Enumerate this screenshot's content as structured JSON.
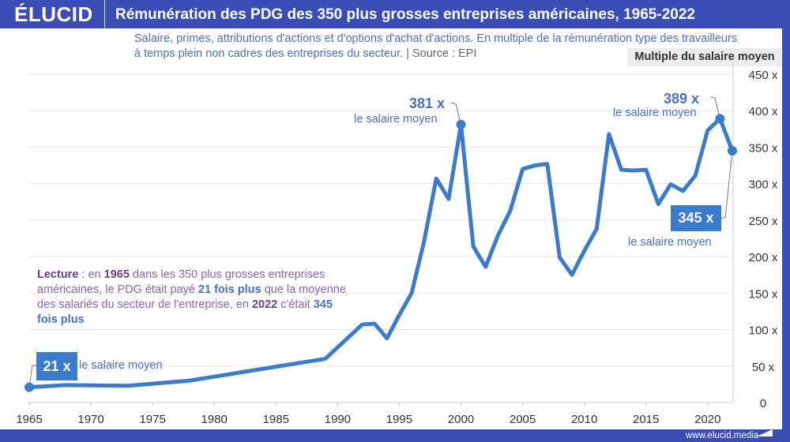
{
  "header": {
    "logo": "ÉLUCID",
    "title": "Rémunération des PDG des 350 plus grosses entreprises américaines, 1965-2022"
  },
  "subtitle": {
    "line1": "Salaire, primes, attributions d'actions et d'options d'achat d'actions. En multiple de la rémunération type des travailleurs",
    "line2": "à temps plein non cadres des entreprises du secteur.",
    "source": "|  Source : EPI"
  },
  "unit_label": "Multiple du salaire moyen",
  "lecture": {
    "t1": "Lecture",
    "t2": " : en ",
    "t3": "1965",
    "t4": " dans les 350 plus grosses entreprises américaines, le PDG était payé ",
    "t5": "21 fois plus",
    "t6": " que la moyenne des salariés du secteur de l'entreprise, en ",
    "t7": "2022",
    "t8": " c'était ",
    "t9": "345 fois plus"
  },
  "annotations": {
    "a1965": {
      "value": "21 x",
      "text": "le salaire moyen"
    },
    "a2000": {
      "value": "381 x",
      "text": "le salaire moyen"
    },
    "a2021": {
      "value": "389 x",
      "text": "le salaire moyen"
    },
    "a2022": {
      "value": "345 x",
      "text": "le salaire moyen"
    }
  },
  "footer": "www.elucid.media",
  "colors": {
    "line": "#3a7ccb",
    "frame": "#3b4db5",
    "grid": "#e6e6e6"
  },
  "chart_data": {
    "type": "line",
    "title": "Rémunération des PDG des 350 plus grosses entreprises américaines, 1965-2022",
    "ylabel": "Multiple du salaire moyen",
    "xlim": [
      1965,
      2022
    ],
    "ylim": [
      0,
      450
    ],
    "xticks": [
      1965,
      1970,
      1975,
      1980,
      1985,
      1990,
      1995,
      2000,
      2005,
      2010,
      2015,
      2020
    ],
    "yticks": [
      0,
      50,
      100,
      150,
      200,
      250,
      300,
      350,
      400,
      450
    ],
    "ytick_labels": [
      "0",
      "50 x",
      "100 x",
      "150 x",
      "200 x",
      "250 x",
      "300 x",
      "350 x",
      "400 x",
      "450 x"
    ],
    "grid": true,
    "y_axis_side": "right",
    "x": [
      1965,
      1968,
      1973,
      1978,
      1989,
      1992,
      1993,
      1994,
      1995,
      1996,
      1997,
      1998,
      1999,
      2000,
      2001,
      2002,
      2003,
      2004,
      2005,
      2006,
      2007,
      2008,
      2009,
      2010,
      2011,
      2012,
      2013,
      2014,
      2015,
      2016,
      2017,
      2018,
      2019,
      2020,
      2021,
      2022
    ],
    "values": [
      21,
      24,
      23,
      30,
      60,
      107,
      108,
      88,
      120,
      150,
      220,
      307,
      279,
      381,
      214,
      186,
      229,
      263,
      320,
      325,
      327,
      199,
      175,
      208,
      238,
      368,
      319,
      318,
      319,
      272,
      299,
      290,
      311,
      373,
      389,
      345
    ]
  }
}
